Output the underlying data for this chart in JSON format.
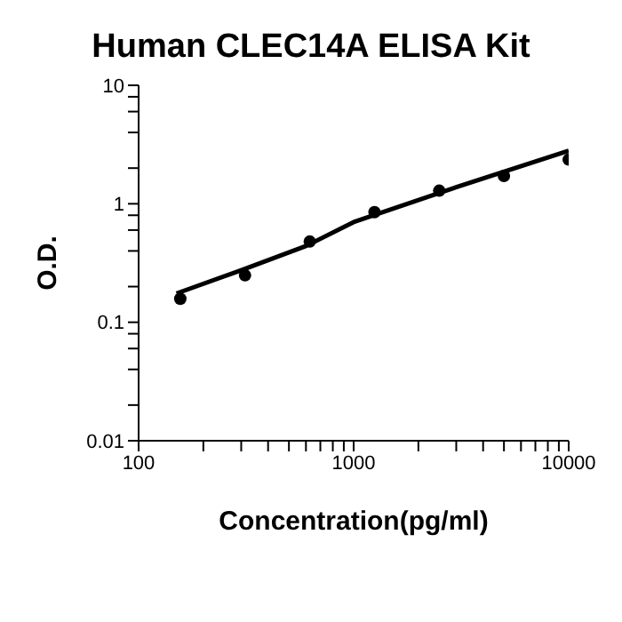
{
  "chart_data": {
    "type": "scatter",
    "title": "Human CLEC14A ELISA Kit",
    "xlabel": "Concentration(pg/ml)",
    "ylabel": "O.D.",
    "log": "xy",
    "grid": false,
    "legend": false,
    "xlim": [
      100,
      10000
    ],
    "xticks": [
      100,
      {
        "value": 200,
        "label": null
      },
      {
        "value": 300,
        "label": null
      },
      {
        "value": 400,
        "label": null
      },
      {
        "value": 500,
        "label": null
      },
      {
        "value": 600,
        "label": null
      },
      {
        "value": 700,
        "label": null
      },
      {
        "value": 800,
        "label": null
      },
      {
        "value": 900,
        "label": null
      },
      1000,
      {
        "value": 2000,
        "label": null
      },
      {
        "value": 3000,
        "label": null
      },
      {
        "value": 4000,
        "label": null
      },
      {
        "value": 5000,
        "label": null
      },
      {
        "value": 6000,
        "label": null
      },
      {
        "value": 7000,
        "label": null
      },
      {
        "value": 8000,
        "label": null
      },
      {
        "value": 9000,
        "label": null
      },
      10000
    ],
    "ylim": [
      0.01,
      10
    ],
    "yticks": [
      0.01,
      {
        "value": 0.02,
        "label": null
      },
      {
        "value": 0.04,
        "label": null
      },
      {
        "value": 0.06,
        "label": null
      },
      {
        "value": 0.08,
        "label": null
      },
      0.1,
      {
        "value": 0.2,
        "label": null
      },
      {
        "value": 0.4,
        "label": null
      },
      {
        "value": 0.6,
        "label": null
      },
      {
        "value": 0.8,
        "label": null
      },
      1,
      {
        "value": 2,
        "label": null
      },
      {
        "value": 4,
        "label": null
      },
      {
        "value": 6,
        "label": null
      },
      {
        "value": 8,
        "label": null
      },
      10
    ],
    "series": [
      {
        "marker": "circle",
        "color": "#000000",
        "x": [
          156.25,
          312.5,
          625,
          1250,
          2500,
          5000,
          10000
        ],
        "values": [
          0.158,
          0.249,
          0.48,
          0.85,
          1.29,
          1.72,
          2.36
        ]
      },
      {
        "type": "line",
        "marker": "none",
        "line_style": "solid",
        "color": "#000000",
        "x": [
          150,
          300,
          600,
          1000,
          3000,
          10000
        ],
        "values": [
          0.175,
          0.275,
          0.44,
          0.7,
          1.38,
          2.8
        ]
      }
    ]
  }
}
